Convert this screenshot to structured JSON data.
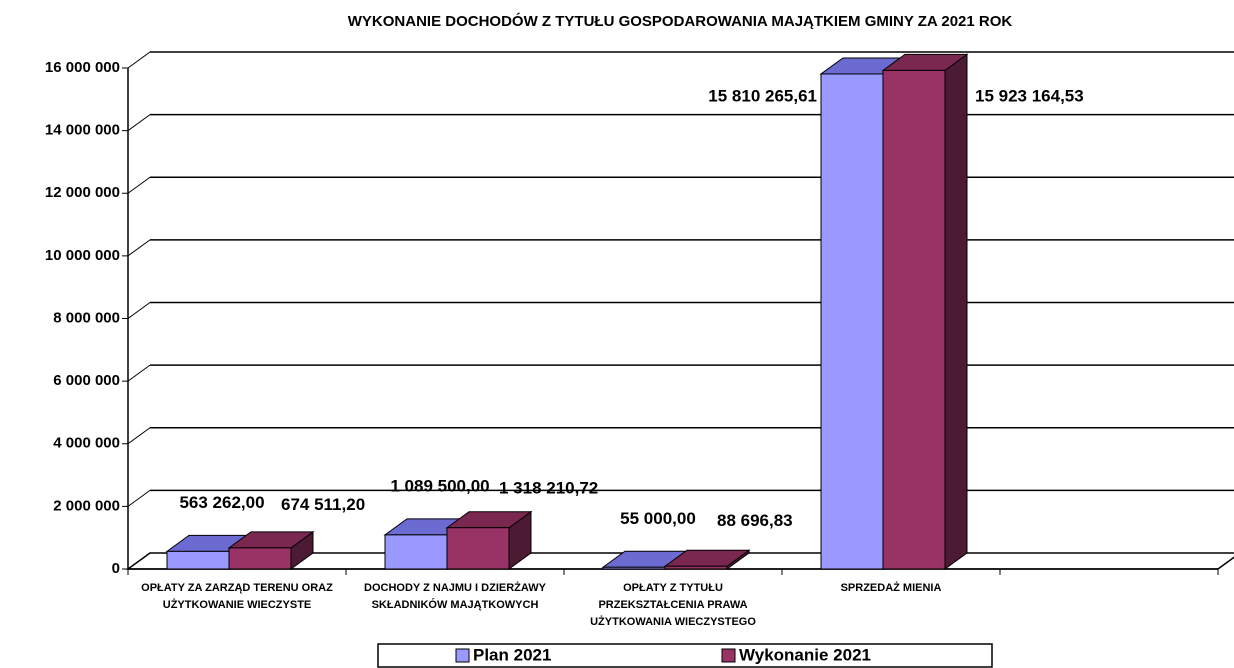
{
  "chart_data": {
    "type": "bar3d",
    "title": "WYKONANIE DOCHODÓW Z TYTUŁU GOSPODAROWANIA MAJĄTKIEM GMINY ZA 2021 ROK",
    "categories": [
      "OPŁATY ZA ZARZĄD TERENU ORAZ UŻYTKOWANIE WIECZYSTE",
      "DOCHODY Z NAJMU I DZIERŻAWY SKŁADNIKÓW MAJĄTKOWYCH",
      "OPŁATY Z TYTUŁU PRZEKSZTAŁCENIA PRAWA UŻYTKOWANIA WIECZYSTEGO",
      "SPRZEDAŻ MIENIA",
      null
    ],
    "series": [
      {
        "name": "Plan 2021",
        "color": "#9999ff",
        "top": "#6b6bd1",
        "side": "#4d4d99",
        "values": [
          563262.0,
          1089500.0,
          55000.0,
          15810265.61,
          null
        ],
        "value_labels": [
          "563 262,00",
          "1 089 500,00",
          "55 000,00",
          "15 810 265,61",
          null
        ]
      },
      {
        "name": "Wykonanie 2021",
        "color": "#993366",
        "top": "#7a2850",
        "side": "#4d1a33",
        "values": [
          674511.2,
          1318210.72,
          88696.83,
          15923164.53,
          null
        ],
        "value_labels": [
          "674 511,20",
          "1 318 210,72",
          "88 696,83",
          "15 923 164,53",
          null
        ]
      }
    ],
    "ylim": [
      0,
      16000000
    ],
    "yticks": [
      0,
      {
        "value": 2000000,
        "label": "2 000 000"
      },
      {
        "value": 4000000,
        "label": "4 000 000"
      },
      {
        "value": 6000000,
        "label": "6 000 000"
      },
      {
        "value": 8000000,
        "label": "8 000 000"
      },
      {
        "value": 10000000,
        "label": "10 000 000"
      },
      {
        "value": 12000000,
        "label": "12 000 000"
      },
      {
        "value": 14000000,
        "label": "14 000 000"
      },
      {
        "value": 16000000,
        "label": "16 000 000"
      }
    ],
    "grid": true
  }
}
